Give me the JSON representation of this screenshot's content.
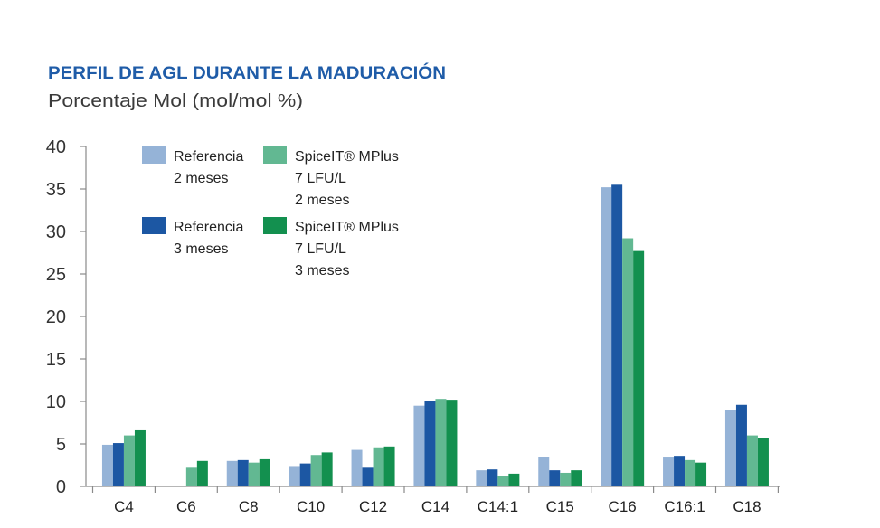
{
  "chart_data": {
    "type": "bar",
    "title": "PERFIL DE AGL DURANTE LA MADURACIÓN",
    "subtitle": "Porcentaje Mol (mol/mol %)",
    "xlabel": "",
    "ylabel": "",
    "categories": [
      "C4",
      "C6",
      "C8",
      "C10",
      "C12",
      "C14",
      "C14:1",
      "C15",
      "C16",
      "C16:1",
      "C18"
    ],
    "ylim": [
      0,
      40
    ],
    "yticks": [
      0,
      5,
      10,
      15,
      20,
      25,
      30,
      35,
      40
    ],
    "grid": false,
    "legend_position": "top-left",
    "series": [
      {
        "name_lines": [
          "Referencia",
          "2 meses"
        ],
        "color": "#95b3d7",
        "values": [
          4.9,
          null,
          3.0,
          2.4,
          4.3,
          9.5,
          1.9,
          3.5,
          35.2,
          3.4,
          9.0
        ]
      },
      {
        "name_lines": [
          "Referencia",
          "3 meses"
        ],
        "color": "#1c57a3",
        "values": [
          5.1,
          null,
          3.1,
          2.7,
          2.2,
          10.0,
          2.0,
          1.9,
          35.5,
          3.6,
          9.6
        ]
      },
      {
        "name_lines": [
          "SpiceIT® MPlus",
          "7 LFU/L",
          "2 meses"
        ],
        "color": "#62b892",
        "values": [
          6.0,
          2.2,
          2.8,
          3.7,
          4.6,
          10.3,
          1.2,
          1.6,
          29.2,
          3.1,
          6.0
        ]
      },
      {
        "name_lines": [
          "SpiceIT® MPlus",
          "7 LFU/L",
          "3 meses"
        ],
        "color": "#13904f",
        "values": [
          6.6,
          3.0,
          3.2,
          4.0,
          4.7,
          10.2,
          1.5,
          1.9,
          27.7,
          2.8,
          5.7
        ]
      }
    ]
  }
}
